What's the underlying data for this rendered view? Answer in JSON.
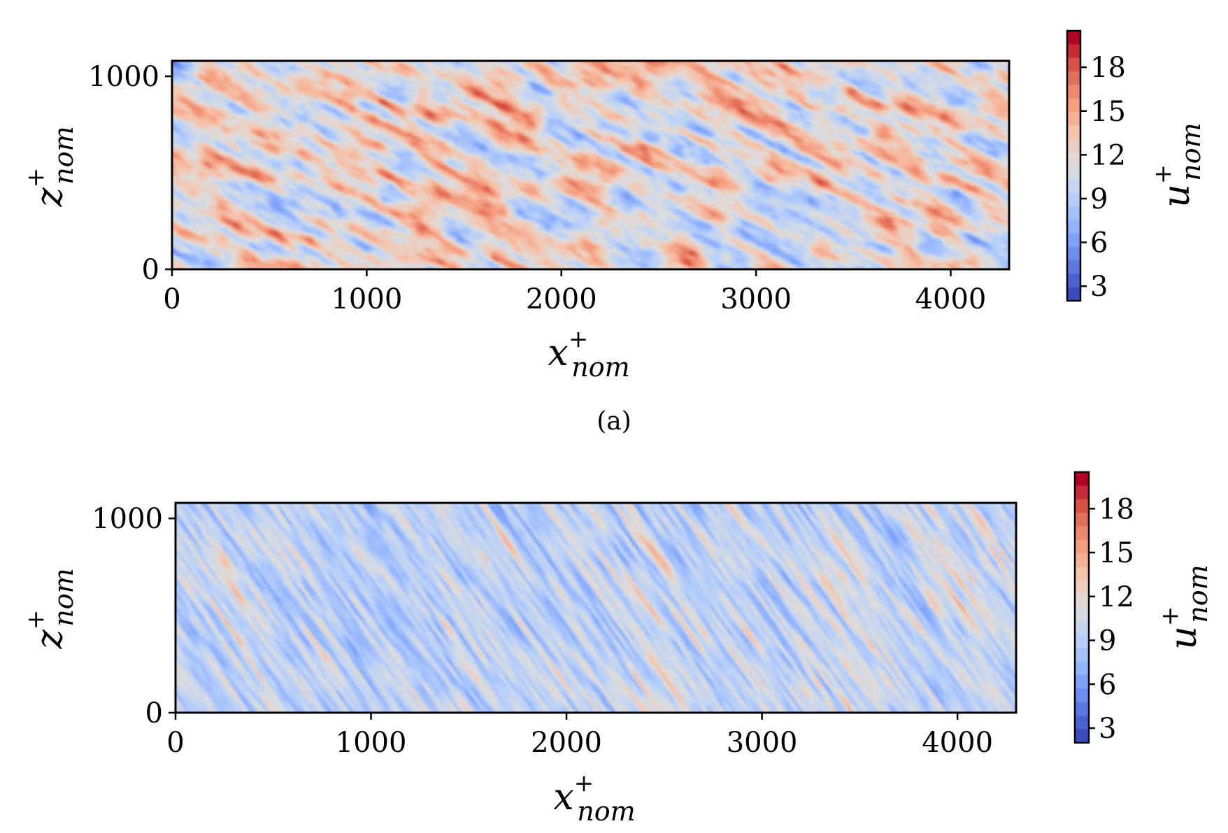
{
  "chart_data": [
    {
      "type": "heatmap",
      "panel": "(a)",
      "xlabel": {
        "base": "x",
        "sup": "+",
        "sub": "nom"
      },
      "ylabel": {
        "base": "z",
        "sup": "+",
        "sub": "nom"
      },
      "colorbar_label": {
        "base": "u",
        "sup": "+",
        "sub": "nom"
      },
      "xlim": [
        0,
        4300
      ],
      "ylim": [
        0,
        1080
      ],
      "xticks": [
        0,
        1000,
        2000,
        3000,
        4000
      ],
      "yticks": [
        0,
        1000
      ],
      "clim": [
        2,
        20.5
      ],
      "cticks": [
        3,
        6,
        9,
        12,
        15,
        18
      ],
      "colormap": "coolwarm",
      "streak_angle_deg": 28,
      "mean_value": 11.8
    },
    {
      "type": "heatmap",
      "panel": "",
      "xlabel": {
        "base": "x",
        "sup": "+",
        "sub": "nom"
      },
      "ylabel": {
        "base": "z",
        "sup": "+",
        "sub": "nom"
      },
      "colorbar_label": {
        "base": "u",
        "sup": "+",
        "sub": "nom"
      },
      "xlim": [
        0,
        4300
      ],
      "ylim": [
        0,
        1080
      ],
      "xticks": [
        0,
        1000,
        2000,
        3000,
        4000
      ],
      "yticks": [
        0,
        1000
      ],
      "clim": [
        2,
        20.5
      ],
      "cticks": [
        3,
        6,
        9,
        12,
        15,
        18
      ],
      "colormap": "coolwarm",
      "streak_angle_deg": 55,
      "mean_value": 9.6
    }
  ]
}
